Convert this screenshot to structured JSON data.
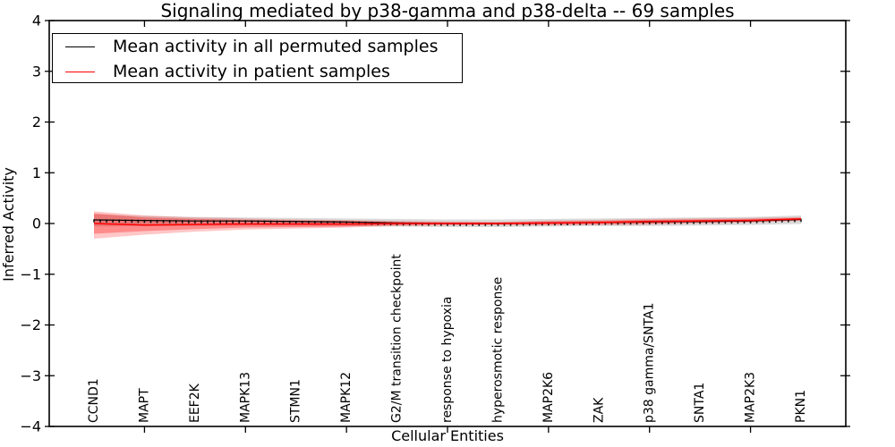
{
  "chart_data": {
    "type": "line",
    "title": "Signaling mediated by p38-gamma and p38-delta -- 69 samples",
    "xlabel": "Cellular Entities",
    "ylabel": "Inferred Activity",
    "ylim": [
      -4,
      4
    ],
    "yticks": [
      4,
      3,
      2,
      1,
      0,
      -1,
      -2,
      -3,
      -4
    ],
    "grid": false,
    "legend_position": "upper left",
    "categories": [
      "CCND1",
      "MAPT",
      "EEF2K",
      "MAPK13",
      "STMN1",
      "MAPK12",
      "G2/M transition checkpoint",
      "response to hypoxia",
      "hyperosmotic response",
      "MAP2K6",
      "ZAK",
      "p38 gamma/SNTA1",
      "SNTA1",
      "MAP2K3",
      "PKN1"
    ],
    "series": [
      {
        "name": "Mean activity in all permuted samples",
        "color": "#000000",
        "marker": "vertical-tick",
        "values": [
          0.07,
          0.06,
          0.05,
          0.05,
          0.04,
          0.03,
          0.01,
          0.0,
          0.0,
          0.01,
          0.02,
          0.03,
          0.04,
          0.05,
          0.08
        ],
        "band": {
          "color": "#000000",
          "opacity": 0.14,
          "upper": [
            0.18,
            0.15,
            0.13,
            0.12,
            0.11,
            0.1,
            0.09,
            0.08,
            0.08,
            0.09,
            0.1,
            0.11,
            0.12,
            0.13,
            0.16
          ],
          "lower": [
            -0.06,
            -0.05,
            -0.05,
            -0.04,
            -0.04,
            -0.05,
            -0.06,
            -0.07,
            -0.07,
            -0.06,
            -0.05,
            -0.05,
            -0.04,
            -0.03,
            -0.01
          ]
        }
      },
      {
        "name": "Mean activity in patient samples",
        "color": "#ff0000",
        "marker": "none",
        "values": [
          0.0,
          -0.03,
          -0.02,
          -0.01,
          -0.01,
          -0.01,
          0.0,
          0.0,
          0.0,
          0.01,
          0.02,
          0.04,
          0.05,
          0.06,
          0.09
        ],
        "band_inner": {
          "color": "#ff0000",
          "opacity": 0.3,
          "upper": [
            0.2,
            0.12,
            0.09,
            0.07,
            0.06,
            0.05,
            0.03,
            0.02,
            0.02,
            0.04,
            0.05,
            0.07,
            0.08,
            0.09,
            0.11
          ],
          "lower": [
            -0.2,
            -0.15,
            -0.11,
            -0.08,
            -0.07,
            -0.06,
            -0.03,
            -0.02,
            -0.02,
            -0.02,
            -0.01,
            0.0,
            0.02,
            0.03,
            0.06
          ]
        },
        "band_outer": {
          "color": "#ff0000",
          "opacity": 0.22,
          "upper": [
            0.24,
            0.16,
            0.12,
            0.1,
            0.08,
            0.07,
            0.05,
            0.04,
            0.03,
            0.06,
            0.07,
            0.09,
            0.1,
            0.11,
            0.13
          ],
          "lower": [
            -0.3,
            -0.22,
            -0.16,
            -0.12,
            -0.1,
            -0.08,
            -0.05,
            -0.04,
            -0.03,
            -0.04,
            -0.03,
            -0.02,
            0.0,
            0.02,
            0.05
          ]
        }
      }
    ]
  }
}
